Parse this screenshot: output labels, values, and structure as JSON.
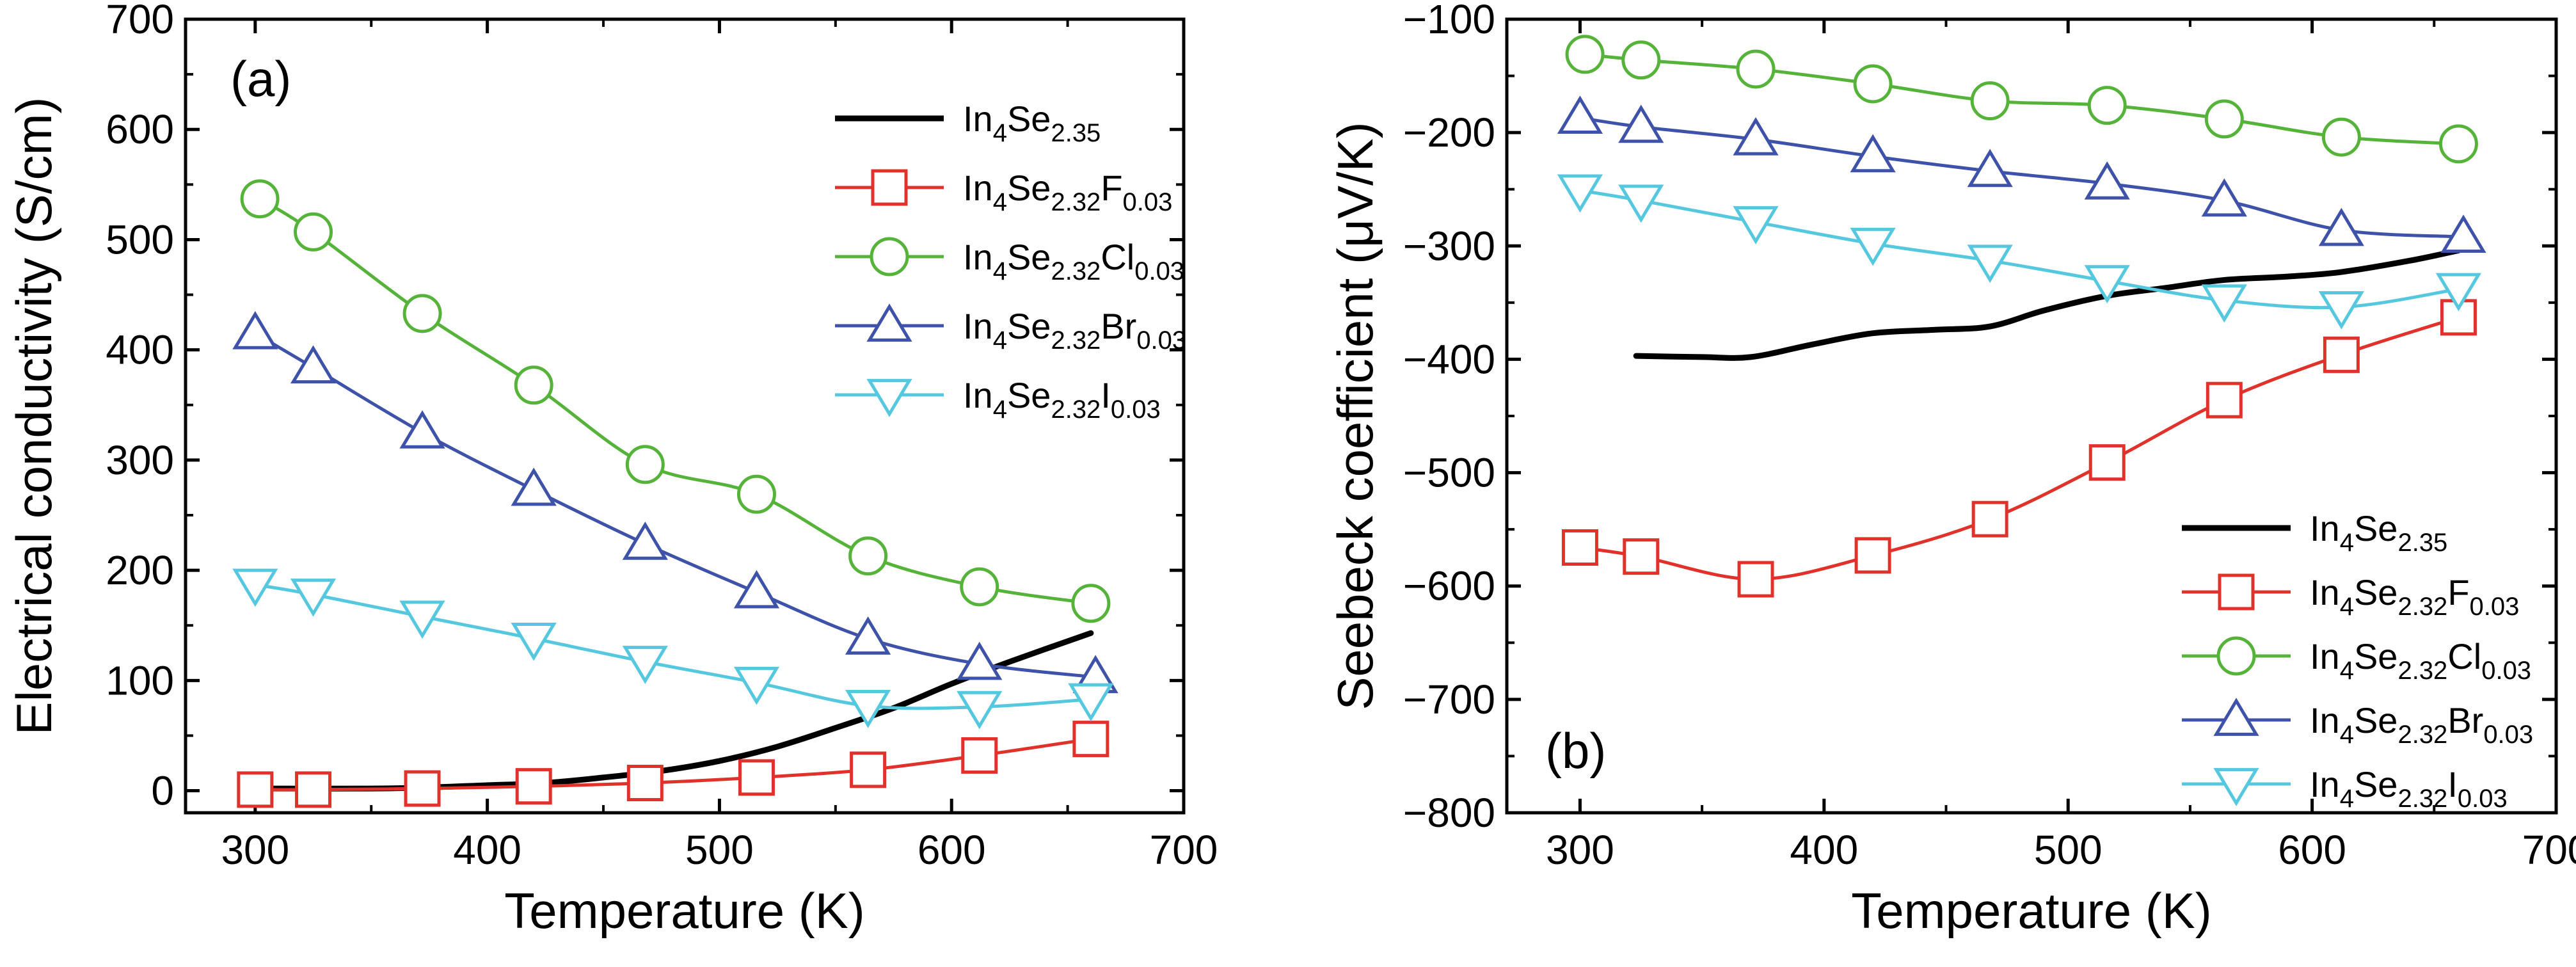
{
  "chart_data": [
    {
      "type": "line",
      "panel_label": "(a)",
      "xlabel": "Temperature (K)",
      "ylabel": "Electrical conductivity (S/cm)",
      "xlim": [
        270,
        700
      ],
      "ylim": [
        -20,
        700
      ],
      "xticks": [
        300,
        400,
        500,
        600,
        700
      ],
      "yticks": [
        0,
        100,
        200,
        300,
        400,
        500,
        600,
        700
      ],
      "legend_position": "top-right",
      "series": [
        {
          "key": "base",
          "name": "In4Se2.35",
          "legend": {
            "base": "In",
            "parts": [
              [
                "4",
                "Se"
              ],
              [
                "2.35",
                ""
              ]
            ]
          },
          "color": "#000000",
          "marker": "none",
          "x": [
            300,
            350,
            375,
            400,
            425,
            450,
            475,
            500,
            525,
            550,
            575,
            600,
            625,
            660
          ],
          "y": [
            2,
            2,
            3,
            5,
            7,
            12,
            18,
            27,
            40,
            57,
            75,
            97,
            117,
            143
          ]
        },
        {
          "key": "F",
          "name": "In4Se2.32F0.03",
          "legend": {
            "base": "In",
            "parts": [
              [
                "4",
                "Se"
              ],
              [
                "2.32",
                "F"
              ],
              [
                "0.03",
                ""
              ]
            ]
          },
          "color": "#e0322b",
          "marker": "square",
          "x": [
            300,
            325,
            372,
            420,
            468,
            516,
            564,
            612,
            660
          ],
          "y": [
            1,
            1,
            2,
            4,
            7,
            12,
            19,
            32,
            47
          ]
        },
        {
          "key": "Cl",
          "name": "In4Se2.32Cl0.03",
          "legend": {
            "base": "In",
            "parts": [
              [
                "4",
                "Se"
              ],
              [
                "2.32",
                "Cl"
              ],
              [
                "0.03",
                ""
              ]
            ]
          },
          "color": "#55b33a",
          "marker": "circle",
          "x": [
            302,
            325,
            372,
            420,
            468,
            516,
            564,
            612,
            660
          ],
          "y": [
            537,
            507,
            433,
            368,
            296,
            269,
            213,
            185,
            170
          ]
        },
        {
          "key": "Br",
          "name": "In4Se2.32Br0.03",
          "legend": {
            "base": "In",
            "parts": [
              [
                "4",
                "Se"
              ],
              [
                "2.32",
                "Br"
              ],
              [
                "0.03",
                ""
              ]
            ]
          },
          "color": "#3d52a8",
          "marker": "triangle-up",
          "x": [
            300,
            325,
            372,
            420,
            468,
            516,
            564,
            612,
            662
          ],
          "y": [
            415,
            384,
            325,
            273,
            224,
            180,
            138,
            115,
            103
          ]
        },
        {
          "key": "I",
          "name": "In4Se2.32I0.03",
          "legend": {
            "base": "In",
            "parts": [
              [
                "4",
                "Se"
              ],
              [
                "2.32",
                "I"
              ],
              [
                "0.03",
                ""
              ]
            ]
          },
          "color": "#55c8df",
          "marker": "triangle-down",
          "x": [
            300,
            325,
            372,
            420,
            468,
            516,
            564,
            612,
            660
          ],
          "y": [
            187,
            178,
            158,
            138,
            117,
            98,
            77,
            76,
            83
          ]
        }
      ]
    },
    {
      "type": "line",
      "panel_label": "(b)",
      "xlabel": "Temperature (K)",
      "ylabel": "Seebeck coefficient (μV/K)",
      "xlim": [
        270,
        700
      ],
      "ylim": [
        -800,
        -100
      ],
      "xticks": [
        300,
        400,
        500,
        600,
        700
      ],
      "yticks": [
        -100,
        -200,
        -300,
        -400,
        -500,
        -600,
        -700,
        -800
      ],
      "legend_position": "bottom-right",
      "series": [
        {
          "key": "base",
          "name": "In4Se2.35",
          "legend": {
            "base": "In",
            "parts": [
              [
                "4",
                "Se"
              ],
              [
                "2.35",
                ""
              ]
            ]
          },
          "color": "#000000",
          "marker": "none",
          "x": [
            323,
            350,
            370,
            395,
            420,
            445,
            468,
            490,
            516,
            540,
            564,
            590,
            612,
            640,
            660
          ],
          "y": [
            -397,
            -398,
            -398,
            -387,
            -377,
            -374,
            -371,
            -357,
            -344,
            -337,
            -330,
            -327,
            -323,
            -313,
            -304
          ]
        },
        {
          "key": "F",
          "name": "In4Se2.32F0.03",
          "legend": {
            "base": "In",
            "parts": [
              [
                "4",
                "Se"
              ],
              [
                "2.32",
                "F"
              ],
              [
                "0.03",
                ""
              ]
            ]
          },
          "color": "#e0322b",
          "marker": "square",
          "x": [
            300,
            325,
            372,
            420,
            468,
            516,
            564,
            612,
            660
          ],
          "y": [
            -566,
            -574,
            -594,
            -573,
            -541,
            -491,
            -436,
            -396,
            -363
          ]
        },
        {
          "key": "Cl",
          "name": "In4Se2.32Cl0.03",
          "legend": {
            "base": "In",
            "parts": [
              [
                "4",
                "Se"
              ],
              [
                "2.32",
                "Cl"
              ],
              [
                "0.03",
                ""
              ]
            ]
          },
          "color": "#55b33a",
          "marker": "circle",
          "x": [
            302,
            325,
            372,
            420,
            468,
            516,
            564,
            612,
            660
          ],
          "y": [
            -131,
            -136,
            -144,
            -157,
            -172,
            -176,
            -188,
            -204,
            -210
          ]
        },
        {
          "key": "Br",
          "name": "In4Se2.32Br0.03",
          "legend": {
            "base": "In",
            "parts": [
              [
                "4",
                "Se"
              ],
              [
                "2.32",
                "Br"
              ],
              [
                "0.03",
                ""
              ]
            ]
          },
          "color": "#3d52a8",
          "marker": "triangle-up",
          "x": [
            300,
            325,
            372,
            420,
            468,
            516,
            564,
            612,
            662
          ],
          "y": [
            -187,
            -195,
            -206,
            -221,
            -234,
            -245,
            -260,
            -286,
            -292
          ]
        },
        {
          "key": "I",
          "name": "In4Se2.32I0.03",
          "legend": {
            "base": "In",
            "parts": [
              [
                "4",
                "Se"
              ],
              [
                "2.32",
                "I"
              ],
              [
                "0.03",
                ""
              ]
            ]
          },
          "color": "#55c8df",
          "marker": "triangle-down",
          "x": [
            300,
            325,
            372,
            420,
            468,
            516,
            564,
            612,
            660
          ],
          "y": [
            -251,
            -260,
            -279,
            -298,
            -313,
            -331,
            -348,
            -354,
            -338
          ]
        }
      ]
    }
  ]
}
